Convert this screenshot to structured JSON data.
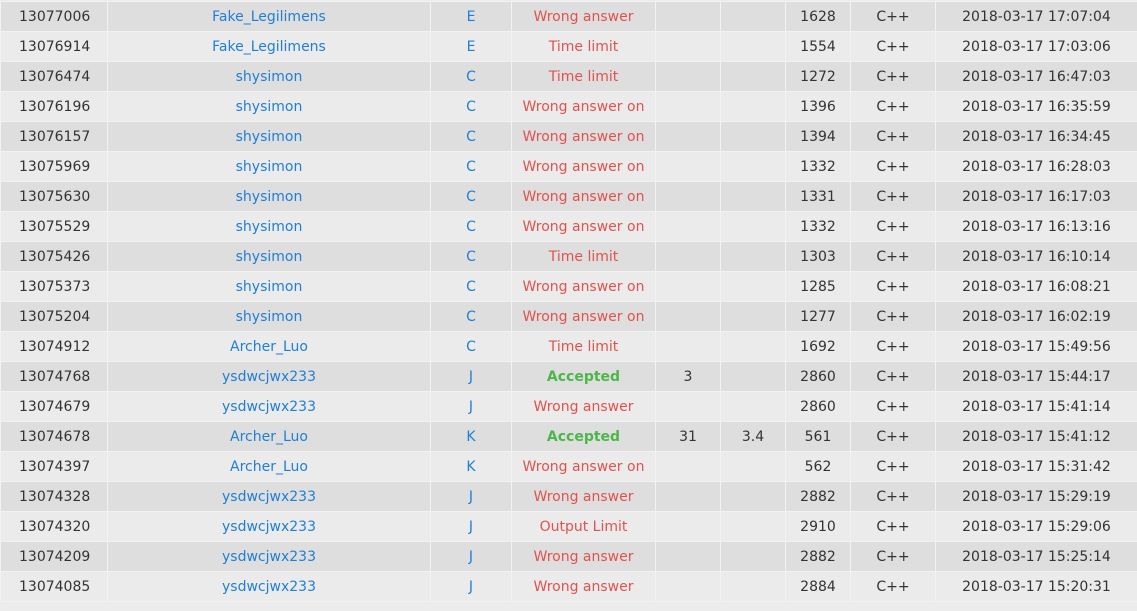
{
  "colors": {
    "link": "#1f7fd6",
    "error": "#e2524d",
    "accepted": "#4cb749"
  },
  "rows": [
    {
      "id": "13077006",
      "user": "Fake_Legilimens",
      "problem": "E",
      "result": "Wrong answer",
      "time": "",
      "memory": "",
      "length": "1628",
      "lang": "C++",
      "submitted": "2018-03-17 17:07:04"
    },
    {
      "id": "13076914",
      "user": "Fake_Legilimens",
      "problem": "E",
      "result": "Time limit",
      "time": "",
      "memory": "",
      "length": "1554",
      "lang": "C++",
      "submitted": "2018-03-17 17:03:06"
    },
    {
      "id": "13076474",
      "user": "shysimon",
      "problem": "C",
      "result": "Time limit",
      "time": "",
      "memory": "",
      "length": "1272",
      "lang": "C++",
      "submitted": "2018-03-17 16:47:03"
    },
    {
      "id": "13076196",
      "user": "shysimon",
      "problem": "C",
      "result": "Wrong answer on",
      "time": "",
      "memory": "",
      "length": "1396",
      "lang": "C++",
      "submitted": "2018-03-17 16:35:59"
    },
    {
      "id": "13076157",
      "user": "shysimon",
      "problem": "C",
      "result": "Wrong answer on",
      "time": "",
      "memory": "",
      "length": "1394",
      "lang": "C++",
      "submitted": "2018-03-17 16:34:45"
    },
    {
      "id": "13075969",
      "user": "shysimon",
      "problem": "C",
      "result": "Wrong answer on",
      "time": "",
      "memory": "",
      "length": "1332",
      "lang": "C++",
      "submitted": "2018-03-17 16:28:03"
    },
    {
      "id": "13075630",
      "user": "shysimon",
      "problem": "C",
      "result": "Wrong answer on",
      "time": "",
      "memory": "",
      "length": "1331",
      "lang": "C++",
      "submitted": "2018-03-17 16:17:03"
    },
    {
      "id": "13075529",
      "user": "shysimon",
      "problem": "C",
      "result": "Wrong answer on",
      "time": "",
      "memory": "",
      "length": "1332",
      "lang": "C++",
      "submitted": "2018-03-17 16:13:16"
    },
    {
      "id": "13075426",
      "user": "shysimon",
      "problem": "C",
      "result": "Time limit",
      "time": "",
      "memory": "",
      "length": "1303",
      "lang": "C++",
      "submitted": "2018-03-17 16:10:14"
    },
    {
      "id": "13075373",
      "user": "shysimon",
      "problem": "C",
      "result": "Wrong answer on",
      "time": "",
      "memory": "",
      "length": "1285",
      "lang": "C++",
      "submitted": "2018-03-17 16:08:21"
    },
    {
      "id": "13075204",
      "user": "shysimon",
      "problem": "C",
      "result": "Wrong answer on",
      "time": "",
      "memory": "",
      "length": "1277",
      "lang": "C++",
      "submitted": "2018-03-17 16:02:19"
    },
    {
      "id": "13074912",
      "user": "Archer_Luo",
      "problem": "C",
      "result": "Time limit",
      "time": "",
      "memory": "",
      "length": "1692",
      "lang": "C++",
      "submitted": "2018-03-17 15:49:56"
    },
    {
      "id": "13074768",
      "user": "ysdwcjwx233",
      "problem": "J",
      "result": "Accepted",
      "time": "3",
      "memory": "",
      "length": "2860",
      "lang": "C++",
      "submitted": "2018-03-17 15:44:17"
    },
    {
      "id": "13074679",
      "user": "ysdwcjwx233",
      "problem": "J",
      "result": "Wrong answer",
      "time": "",
      "memory": "",
      "length": "2860",
      "lang": "C++",
      "submitted": "2018-03-17 15:41:14"
    },
    {
      "id": "13074678",
      "user": "Archer_Luo",
      "problem": "K",
      "result": "Accepted",
      "time": "31",
      "memory": "3.4",
      "length": "561",
      "lang": "C++",
      "submitted": "2018-03-17 15:41:12"
    },
    {
      "id": "13074397",
      "user": "Archer_Luo",
      "problem": "K",
      "result": "Wrong answer on",
      "time": "",
      "memory": "",
      "length": "562",
      "lang": "C++",
      "submitted": "2018-03-17 15:31:42"
    },
    {
      "id": "13074328",
      "user": "ysdwcjwx233",
      "problem": "J",
      "result": "Wrong answer",
      "time": "",
      "memory": "",
      "length": "2882",
      "lang": "C++",
      "submitted": "2018-03-17 15:29:19"
    },
    {
      "id": "13074320",
      "user": "ysdwcjwx233",
      "problem": "J",
      "result": "Output Limit",
      "time": "",
      "memory": "",
      "length": "2910",
      "lang": "C++",
      "submitted": "2018-03-17 15:29:06"
    },
    {
      "id": "13074209",
      "user": "ysdwcjwx233",
      "problem": "J",
      "result": "Wrong answer",
      "time": "",
      "memory": "",
      "length": "2882",
      "lang": "C++",
      "submitted": "2018-03-17 15:25:14"
    },
    {
      "id": "13074085",
      "user": "ysdwcjwx233",
      "problem": "J",
      "result": "Wrong answer",
      "time": "",
      "memory": "",
      "length": "2884",
      "lang": "C++",
      "submitted": "2018-03-17 15:20:31"
    }
  ]
}
